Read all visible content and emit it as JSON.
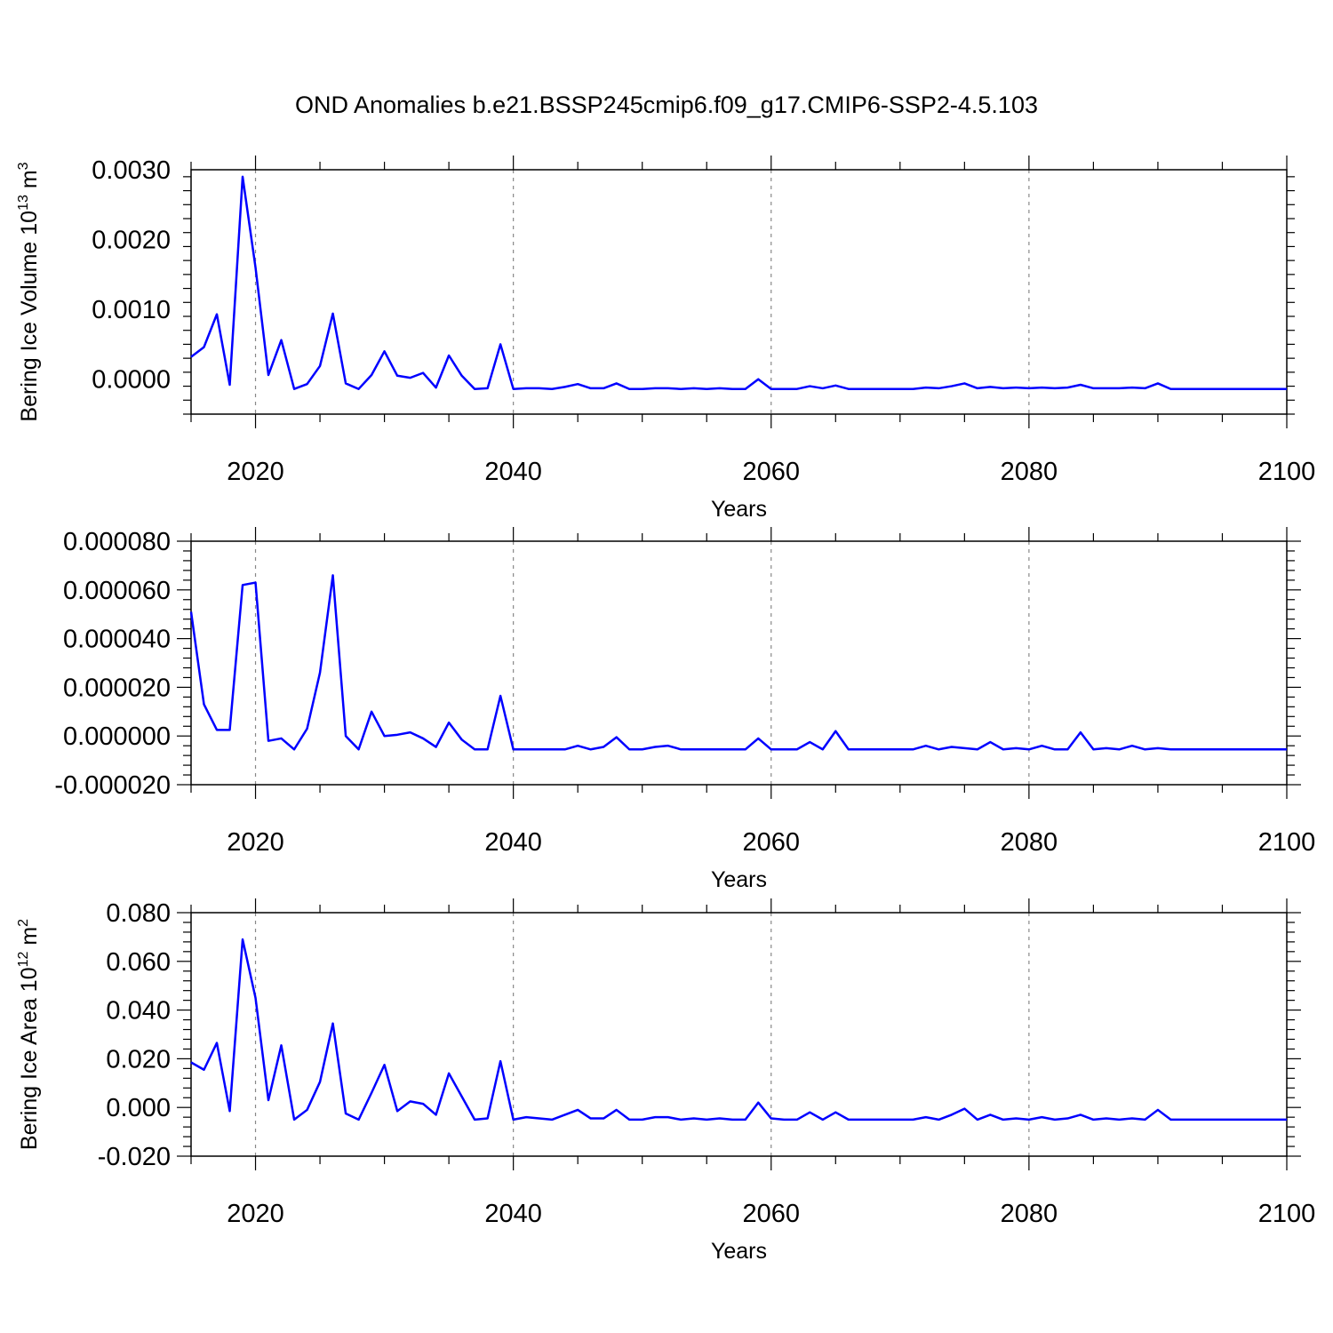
{
  "title": "OND Anomalies b.e21.BSSP245cmip6.f09_g17.CMIP6-SSP2-4.5.103",
  "colors": {
    "line": "#0000ff",
    "grid": "#888888",
    "axis": "#000000"
  },
  "chart_data": [
    {
      "type": "line",
      "title": "",
      "xlabel": "Years",
      "ylabel_main": "Bering Ice Volume 10",
      "ylabel_exp": "13",
      "ylabel_unit": " m",
      "ylabel_unit_exp": "3",
      "xlim": [
        2015,
        2100
      ],
      "ylim": [
        -0.0005,
        0.003
      ],
      "xticks": [
        "2020",
        "2040",
        "2060",
        "2080",
        "2100"
      ],
      "yticks": [
        "0.0000",
        "0.0010",
        "0.0020",
        "0.0030"
      ],
      "grid": "vertical dashed at labeled years",
      "series": [
        {
          "x": [
            2015,
            2016,
            2017,
            2018,
            2019,
            2020,
            2021,
            2022,
            2023,
            2024,
            2025,
            2026,
            2027,
            2028,
            2029,
            2030,
            2031,
            2032,
            2033,
            2034,
            2035,
            2036,
            2037,
            2038,
            2039,
            2040,
            2041,
            2042,
            2043,
            2044,
            2045,
            2046,
            2047,
            2048,
            2049,
            2050,
            2051,
            2052,
            2053,
            2054,
            2055,
            2056,
            2057,
            2058,
            2059,
            2060,
            2061,
            2062,
            2063,
            2064,
            2065,
            2066,
            2067,
            2068,
            2069,
            2070,
            2071,
            2072,
            2073,
            2074,
            2075,
            2076,
            2077,
            2078,
            2079,
            2080,
            2081,
            2082,
            2083,
            2084,
            2085,
            2086,
            2087,
            2088,
            2089,
            2090,
            2091,
            2092,
            2093,
            2094,
            2095,
            2096,
            2097,
            2098,
            2099,
            2100
          ],
          "values": [
            0.00032,
            0.00046,
            0.00093,
            -8e-05,
            0.0029,
            0.0016,
            6e-05,
            0.00056,
            -0.00014,
            -7e-05,
            0.00019,
            0.00094,
            -6e-05,
            -0.00014,
            6e-05,
            0.0004,
            5e-05,
            2e-05,
            9e-05,
            -0.00012,
            0.00034,
            5e-05,
            -0.00014,
            -0.00013,
            0.0005,
            -0.00014,
            -0.00013,
            -0.00013,
            -0.00014,
            -0.00011,
            -7e-05,
            -0.00013,
            -0.00013,
            -6e-05,
            -0.00014,
            -0.00014,
            -0.00013,
            -0.00013,
            -0.00014,
            -0.00013,
            -0.00014,
            -0.00013,
            -0.00014,
            -0.00014,
            0.0,
            -0.00014,
            -0.00014,
            -0.00014,
            -0.0001,
            -0.00013,
            -9e-05,
            -0.00014,
            -0.00014,
            -0.00014,
            -0.00014,
            -0.00014,
            -0.00014,
            -0.00012,
            -0.00013,
            -0.0001,
            -6e-05,
            -0.00013,
            -0.00011,
            -0.00013,
            -0.00012,
            -0.00013,
            -0.00012,
            -0.00013,
            -0.00012,
            -8e-05,
            -0.00013,
            -0.00013,
            -0.00013,
            -0.00012,
            -0.00013,
            -6e-05,
            -0.00014,
            -0.00014,
            -0.00014,
            -0.00014,
            -0.00014,
            -0.00014,
            -0.00014,
            -0.00014,
            -0.00014,
            -0.00014
          ]
        }
      ]
    },
    {
      "type": "line",
      "title": "",
      "xlabel": "Years",
      "ylabel_main": "",
      "xlim": [
        2015,
        2100
      ],
      "ylim": [
        -2e-05,
        8e-05
      ],
      "xticks": [
        "2020",
        "2040",
        "2060",
        "2080",
        "2100"
      ],
      "yticks": [
        "-0.000020",
        "0.000000",
        "0.000020",
        "0.000040",
        "0.000060",
        "0.000080"
      ],
      "grid": "vertical dashed at labeled years",
      "series": [
        {
          "x": [
            2015,
            2016,
            2017,
            2018,
            2019,
            2020,
            2021,
            2022,
            2023,
            2024,
            2025,
            2026,
            2027,
            2028,
            2029,
            2030,
            2031,
            2032,
            2033,
            2034,
            2035,
            2036,
            2037,
            2038,
            2039,
            2040,
            2041,
            2042,
            2043,
            2044,
            2045,
            2046,
            2047,
            2048,
            2049,
            2050,
            2051,
            2052,
            2053,
            2054,
            2055,
            2056,
            2057,
            2058,
            2059,
            2060,
            2061,
            2062,
            2063,
            2064,
            2065,
            2066,
            2067,
            2068,
            2069,
            2070,
            2071,
            2072,
            2073,
            2074,
            2075,
            2076,
            2077,
            2078,
            2079,
            2080,
            2081,
            2082,
            2083,
            2084,
            2085,
            2086,
            2087,
            2088,
            2089,
            2090,
            2091,
            2092,
            2093,
            2094,
            2095,
            2096,
            2097,
            2098,
            2099,
            2100
          ],
          "values": [
            5.1e-05,
            1.3e-05,
            2.5e-06,
            2.5e-06,
            6.2e-05,
            6.3e-05,
            -2e-06,
            -1e-06,
            -5.5e-06,
            3e-06,
            2.6e-05,
            6.6e-05,
            0.0,
            -5.5e-06,
            1e-05,
            0.0,
            5e-07,
            1.5e-06,
            -1e-06,
            -4.5e-06,
            5.5e-06,
            -1.5e-06,
            -5.5e-06,
            -5.5e-06,
            1.65e-05,
            -5.5e-06,
            -5.5e-06,
            -5.5e-06,
            -5.5e-06,
            -5.5e-06,
            -4e-06,
            -5.5e-06,
            -4.5e-06,
            -5e-07,
            -5.5e-06,
            -5.5e-06,
            -4.5e-06,
            -4e-06,
            -5.5e-06,
            -5.5e-06,
            -5.5e-06,
            -5.5e-06,
            -5.5e-06,
            -5.5e-06,
            -1e-06,
            -5.5e-06,
            -5.5e-06,
            -5.5e-06,
            -2.5e-06,
            -5.5e-06,
            2e-06,
            -5.5e-06,
            -5.5e-06,
            -5.5e-06,
            -5.5e-06,
            -5.5e-06,
            -5.5e-06,
            -4e-06,
            -5.5e-06,
            -4.5e-06,
            -5e-06,
            -5.5e-06,
            -2.5e-06,
            -5.5e-06,
            -5e-06,
            -5.5e-06,
            -4e-06,
            -5.5e-06,
            -5.5e-06,
            1.5e-06,
            -5.5e-06,
            -5e-06,
            -5.5e-06,
            -4e-06,
            -5.5e-06,
            -5e-06,
            -5.5e-06,
            -5.5e-06,
            -5.5e-06,
            -5.5e-06,
            -5.5e-06,
            -5.5e-06,
            -5.5e-06,
            -5.5e-06,
            -5.5e-06,
            -5.5e-06
          ]
        }
      ]
    },
    {
      "type": "line",
      "title": "",
      "xlabel": "Years",
      "ylabel_main": "Bering Ice Area 10",
      "ylabel_exp": "12",
      "ylabel_unit": " m",
      "ylabel_unit_exp": "2",
      "xlim": [
        2015,
        2100
      ],
      "ylim": [
        -0.02,
        0.08
      ],
      "xticks": [
        "2020",
        "2040",
        "2060",
        "2080",
        "2100"
      ],
      "yticks": [
        "-0.020",
        "0.000",
        "0.020",
        "0.040",
        "0.060",
        "0.080"
      ],
      "grid": "vertical dashed at labeled years",
      "series": [
        {
          "x": [
            2015,
            2016,
            2017,
            2018,
            2019,
            2020,
            2021,
            2022,
            2023,
            2024,
            2025,
            2026,
            2027,
            2028,
            2029,
            2030,
            2031,
            2032,
            2033,
            2034,
            2035,
            2036,
            2037,
            2038,
            2039,
            2040,
            2041,
            2042,
            2043,
            2044,
            2045,
            2046,
            2047,
            2048,
            2049,
            2050,
            2051,
            2052,
            2053,
            2054,
            2055,
            2056,
            2057,
            2058,
            2059,
            2060,
            2061,
            2062,
            2063,
            2064,
            2065,
            2066,
            2067,
            2068,
            2069,
            2070,
            2071,
            2072,
            2073,
            2074,
            2075,
            2076,
            2077,
            2078,
            2079,
            2080,
            2081,
            2082,
            2083,
            2084,
            2085,
            2086,
            2087,
            2088,
            2089,
            2090,
            2091,
            2092,
            2093,
            2094,
            2095,
            2096,
            2097,
            2098,
            2099,
            2100
          ],
          "values": [
            0.0185,
            0.0155,
            0.0265,
            -0.0015,
            0.069,
            0.045,
            0.003,
            0.0255,
            -0.005,
            -0.001,
            0.0105,
            0.0345,
            -0.0025,
            -0.005,
            0.006,
            0.0175,
            -0.0015,
            0.0025,
            0.0015,
            -0.003,
            0.014,
            0.0045,
            -0.005,
            -0.0045,
            0.019,
            -0.005,
            -0.004,
            -0.0045,
            -0.005,
            -0.003,
            -0.001,
            -0.0045,
            -0.0045,
            -0.001,
            -0.005,
            -0.005,
            -0.004,
            -0.004,
            -0.005,
            -0.0045,
            -0.005,
            -0.0045,
            -0.005,
            -0.005,
            0.002,
            -0.0045,
            -0.005,
            -0.005,
            -0.002,
            -0.005,
            -0.002,
            -0.005,
            -0.005,
            -0.005,
            -0.005,
            -0.005,
            -0.005,
            -0.004,
            -0.005,
            -0.003,
            -0.0005,
            -0.005,
            -0.003,
            -0.005,
            -0.0045,
            -0.005,
            -0.004,
            -0.005,
            -0.0045,
            -0.003,
            -0.005,
            -0.0045,
            -0.005,
            -0.0045,
            -0.005,
            -0.001,
            -0.005,
            -0.005,
            -0.005,
            -0.005,
            -0.005,
            -0.005,
            -0.005,
            -0.005,
            -0.005,
            -0.005
          ]
        }
      ]
    }
  ]
}
